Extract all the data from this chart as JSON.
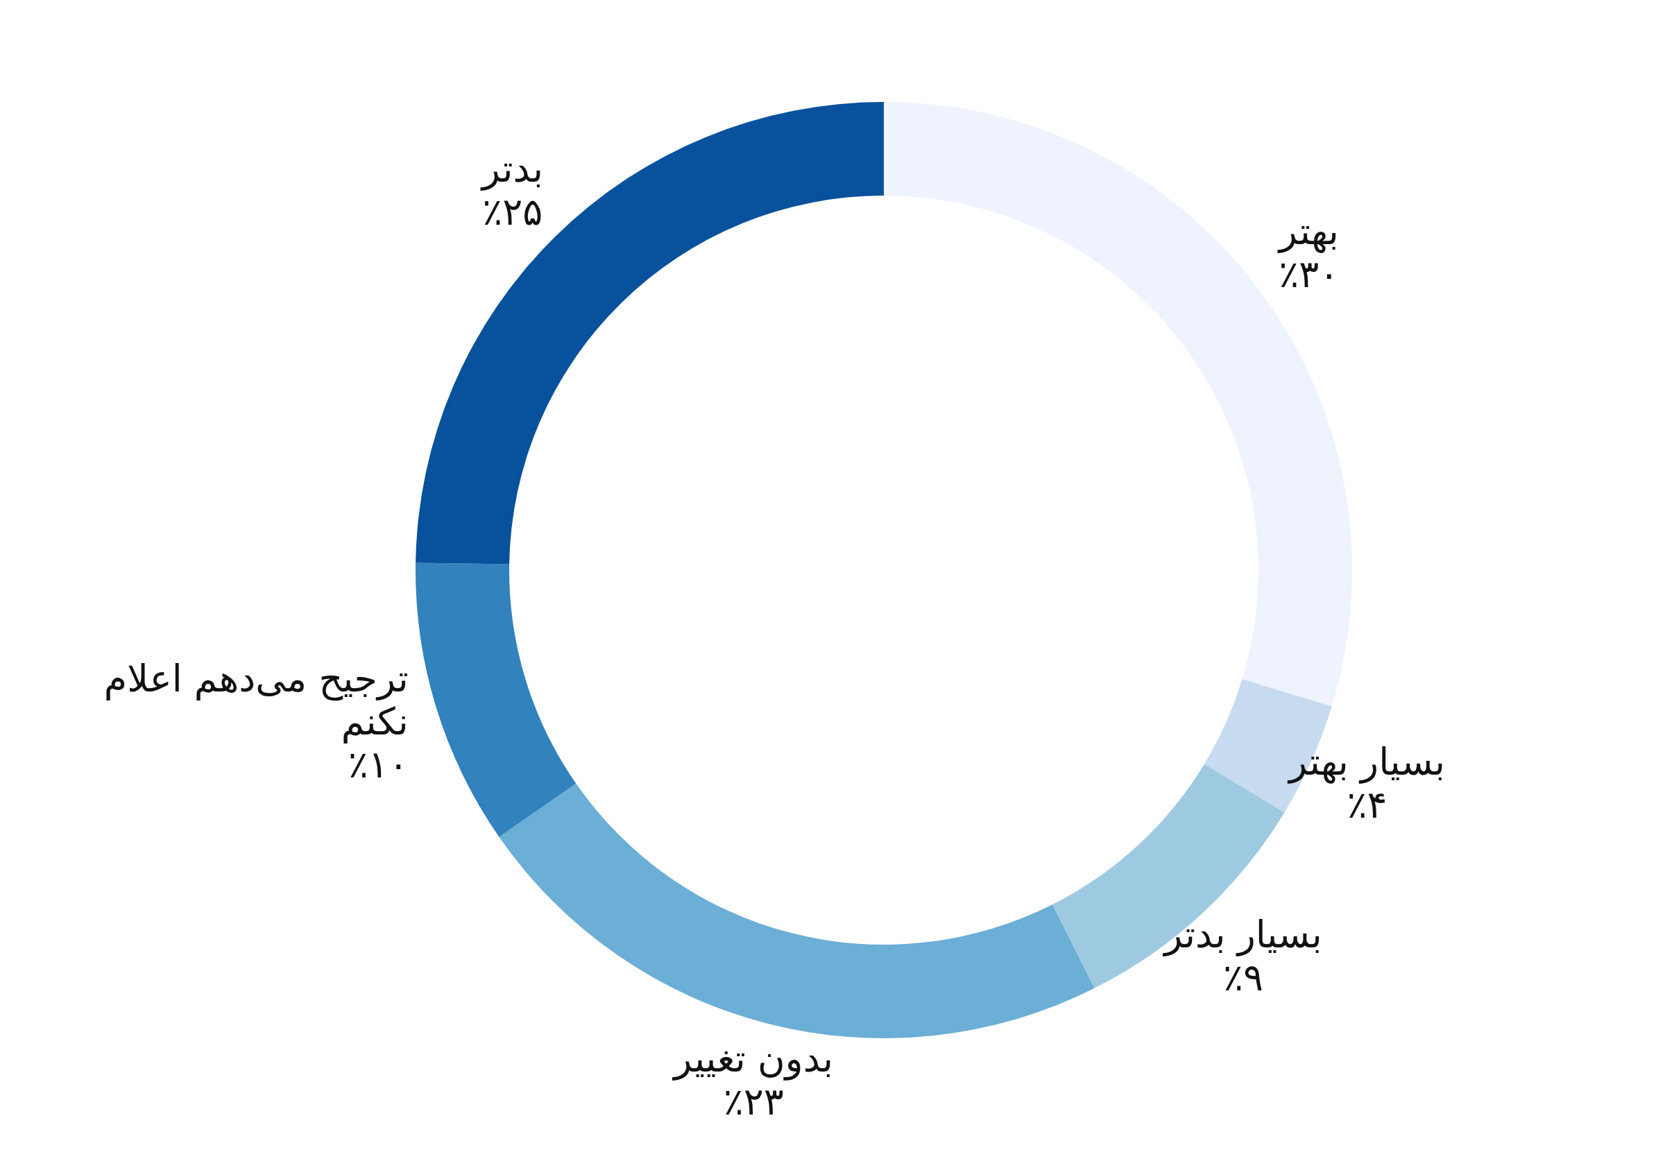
{
  "chart_data": {
    "type": "donut",
    "categories": [
      "بهتر",
      "بسیار بهتر",
      "بسیار بدتر",
      "بدون تغییر",
      "ترجیح می‌دهم اعلام نکنم",
      "بدتر"
    ],
    "values": [
      30,
      4,
      9,
      23,
      10,
      25
    ],
    "colors": [
      "#eef3fe",
      "#c6dbef",
      "#9ecae1",
      "#6baed6",
      "#3182bd",
      "#08519c"
    ],
    "value_labels": [
      "٪۳۰",
      "٪۴",
      "٪۹",
      "٪۲۳",
      "٪۱۰",
      "٪۲۵"
    ]
  }
}
